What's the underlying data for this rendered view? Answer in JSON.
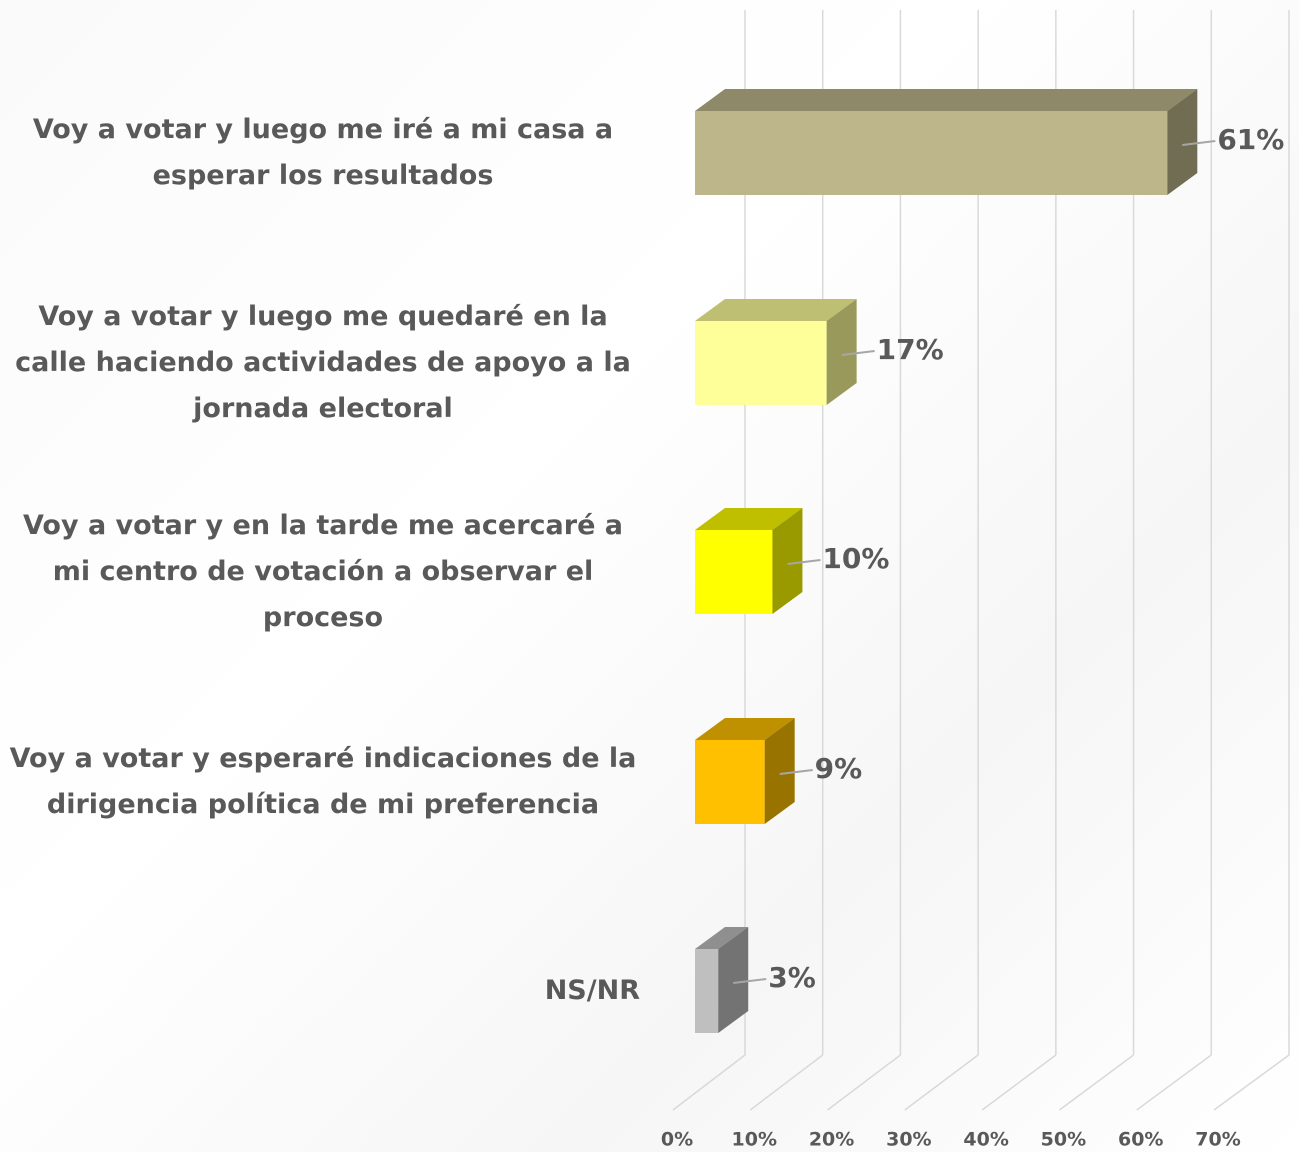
{
  "chart_data": {
    "type": "bar",
    "orientation": "horizontal",
    "categories": [
      "Voy a votar y luego me iré a mi casa a esperar los resultados",
      "Voy a votar y luego me quedaré en la calle haciendo actividades de apoyo a la jornada electoral",
      "Voy a votar y en la tarde me acercaré a mi centro de votación a observar el proceso",
      "Voy a votar y esperaré indicaciones de la dirigencia política de mi preferencia",
      "NS/NR"
    ],
    "values": [
      61,
      17,
      10,
      9,
      3
    ],
    "value_labels": [
      "61%",
      "17%",
      "10%",
      "9%",
      "3%"
    ],
    "colors": [
      "#bdb68a",
      "#ffff99",
      "#ffff00",
      "#ffc000",
      "#bfbfbf"
    ],
    "xlim": [
      0,
      70
    ],
    "xticks": [
      {
        "value": 0,
        "label": "0%"
      },
      {
        "value": 10,
        "label": "10%"
      },
      {
        "value": 20,
        "label": "20%"
      },
      {
        "value": 30,
        "label": "30%"
      },
      {
        "value": 40,
        "label": "40%"
      },
      {
        "value": 50,
        "label": "50%"
      },
      {
        "value": 60,
        "label": "60%"
      },
      {
        "value": 70,
        "label": "70%"
      }
    ],
    "grid": true
  }
}
